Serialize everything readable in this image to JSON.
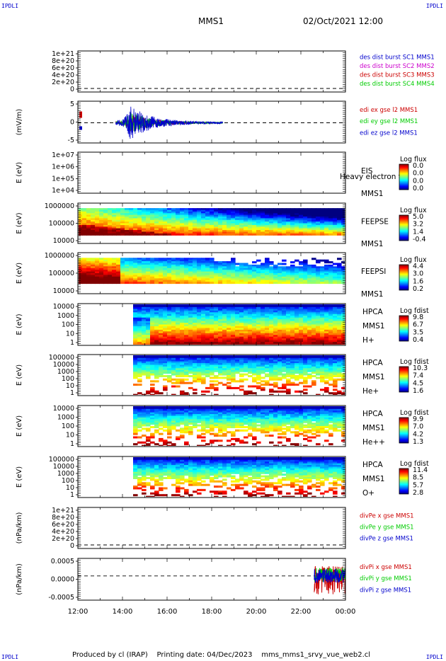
{
  "corners": {
    "tl": "IPDLI",
    "tr": "IPDLI",
    "bl": "IPDLI",
    "br": "IPDLI"
  },
  "header": {
    "mission": "MMS1",
    "datetime": "02/Oct/2021 12:00"
  },
  "footer": {
    "text": "Produced by cl (IRAP)    Printing date: 04/Dec/2023    mms_mms1_srvy_vue_web2.cl"
  },
  "colors": {
    "red": "#cc0000",
    "green": "#00cc00",
    "blue": "#0000cc",
    "magenta": "#cc00cc"
  },
  "chart_data": {
    "type": "stacked-timeseries",
    "xaxis": {
      "ticks": [
        "12:00",
        "14:00",
        "16:00",
        "18:00",
        "20:00",
        "22:00",
        "00:00"
      ],
      "range_hours": [
        12,
        24
      ]
    },
    "panels": [
      {
        "id": "p1",
        "type": "line",
        "ylabel": "",
        "yticks": [
          "1e+21",
          "8e+20",
          "6e+20",
          "4e+20",
          "2e+20",
          "0"
        ],
        "legend": [
          {
            "text": "des dist burst SC1 MMS1",
            "color": "#0000cc"
          },
          {
            "text": "des dist burst SC2 MMS2",
            "color": "#cc00cc"
          },
          {
            "text": "des dist burst SC3 MMS3",
            "color": "#cc0000"
          },
          {
            "text": "des dist burst SC4 MMS4",
            "color": "#00cc00"
          }
        ]
      },
      {
        "id": "p2",
        "type": "line",
        "ylabel": "(mV/m)",
        "yticks": [
          "5",
          "0",
          "-5"
        ],
        "ylim": [
          -8,
          8
        ],
        "legend": [
          {
            "text": "edi ex gse l2 MMS1",
            "color": "#cc0000"
          },
          {
            "text": "edi ey gse l2 MMS1",
            "color": "#00cc00"
          },
          {
            "text": "edi ez gse l2 MMS1",
            "color": "#0000cc"
          }
        ],
        "activity_hours": [
          13.7,
          18.5
        ],
        "peak_hour": 14.35,
        "peak_amplitude": 6.5
      },
      {
        "id": "p3",
        "type": "spectrogram",
        "ylabel": "E (eV)",
        "yticks": [
          "1e+07",
          "1e+06",
          "1e+05",
          "1e+04"
        ],
        "labels": [
          "EIS",
          "MMS1"
        ],
        "overlay": "Heavy electron tof",
        "colorbar_title": "Log flux",
        "colorbar_ticks": [
          "0.0",
          "0.0",
          "0.0",
          "0.0"
        ]
      },
      {
        "id": "p4",
        "type": "spectrogram",
        "ylabel": "E (eV)",
        "yticks": [
          "1000000",
          "100000",
          "10000"
        ],
        "labels": [
          "FEEPSE",
          "MMS1"
        ],
        "colorbar_title": "Log flux",
        "colorbar_ticks": [
          "5.0",
          "3.2",
          "1.4",
          "-0.4"
        ]
      },
      {
        "id": "p5",
        "type": "spectrogram",
        "ylabel": "E (eV)",
        "yticks": [
          "1000000",
          "100000",
          "10000"
        ],
        "labels": [
          "FEEPSI",
          "MMS1"
        ],
        "colorbar_title": "Log flux",
        "colorbar_ticks": [
          "4.4",
          "3.0",
          "1.6",
          "0.2"
        ]
      },
      {
        "id": "p6",
        "type": "spectrogram",
        "ylabel": "E (eV)",
        "yticks": [
          "10000",
          "1000",
          "100",
          "10",
          "1"
        ],
        "labels": [
          "HPCA",
          "MMS1",
          "H+"
        ],
        "colorbar_title": "Log fdist",
        "colorbar_ticks": [
          "9.8",
          "6.7",
          "3.5",
          "0.4"
        ],
        "start_hour": 14.45
      },
      {
        "id": "p7",
        "type": "spectrogram",
        "ylabel": "E (eV)",
        "yticks": [
          "100000",
          "10000",
          "1000",
          "100",
          "10",
          "1"
        ],
        "labels": [
          "HPCA",
          "MMS1",
          "He+"
        ],
        "colorbar_title": "Log fdist",
        "colorbar_ticks": [
          "10.3",
          "7.4",
          "4.5",
          "1.6"
        ],
        "start_hour": 14.45
      },
      {
        "id": "p8",
        "type": "spectrogram",
        "ylabel": "E (eV)",
        "yticks": [
          "10000",
          "1000",
          "100",
          "10",
          "1"
        ],
        "labels": [
          "HPCA",
          "MMS1",
          "He++"
        ],
        "colorbar_title": "Log fdist",
        "colorbar_ticks": [
          "9.9",
          "7.0",
          "4.2",
          "1.3"
        ],
        "start_hour": 14.45
      },
      {
        "id": "p9",
        "type": "spectrogram",
        "ylabel": "E (eV)",
        "yticks": [
          "100000",
          "10000",
          "1000",
          "100",
          "10",
          "1"
        ],
        "labels": [
          "HPCA",
          "MMS1",
          "O+"
        ],
        "colorbar_title": "Log fdist",
        "colorbar_ticks": [
          "11.4",
          "8.5",
          "5.7",
          "2.8"
        ],
        "start_hour": 14.45
      },
      {
        "id": "p10",
        "type": "line",
        "ylabel": "(nPa/km)",
        "yticks": [
          "1e+21",
          "8e+20",
          "6e+20",
          "4e+20",
          "2e+20",
          "0"
        ],
        "legend": [
          {
            "text": "divPe x gse MMS1",
            "color": "#cc0000"
          },
          {
            "text": "divPe y gse MMS1",
            "color": "#00cc00"
          },
          {
            "text": "divPe z gse MMS1",
            "color": "#0000cc"
          }
        ]
      },
      {
        "id": "p11",
        "type": "line",
        "ylabel": "(nPa/km)",
        "yticks": [
          "0.0005",
          "0.0000",
          "-0.0005"
        ],
        "ylim": [
          -0.0009,
          0.0006
        ],
        "legend": [
          {
            "text": "divPi x gse MMS1",
            "color": "#cc0000"
          },
          {
            "text": "divPi y gse MMS1",
            "color": "#00cc00"
          },
          {
            "text": "divPi z gse MMS1",
            "color": "#0000cc"
          }
        ],
        "activity_hours": [
          22.6,
          24.0
        ]
      }
    ]
  }
}
